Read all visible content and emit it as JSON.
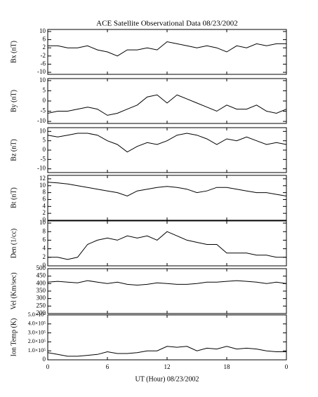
{
  "title": "ACE Satellite Observational Data   08/23/2002",
  "x_label": "UT (Hour)   08/23/2002",
  "x": [
    0,
    1,
    2,
    3,
    4,
    5,
    6,
    7,
    8,
    9,
    10,
    11,
    12,
    13,
    14,
    15,
    16,
    17,
    18,
    19,
    20,
    21,
    22,
    23,
    24
  ],
  "xlim": [
    0,
    24
  ],
  "xticks": [
    0,
    6,
    12,
    18,
    {
      "value": 24,
      "label": "0"
    }
  ],
  "chart_data": [
    {
      "type": "line",
      "y_label": "Bx (nT)",
      "color": "#000000",
      "values": [
        3,
        3,
        2,
        2,
        3,
        1,
        0,
        -2,
        1,
        1,
        2,
        1,
        5,
        4,
        3,
        2,
        3,
        2,
        0,
        3,
        2,
        4,
        3,
        4,
        4
      ],
      "ylim": [
        -11,
        11
      ],
      "yticks": [
        10,
        6,
        2,
        -2,
        -6,
        -10
      ]
    },
    {
      "type": "line",
      "y_label": "By (nT)",
      "color": "#000000",
      "values": [
        -6,
        -5,
        -5,
        -4,
        -3,
        -4,
        -7,
        -6,
        -4,
        -2,
        2,
        3,
        -1,
        3,
        1,
        -1,
        -3,
        -5,
        -2,
        -4,
        -4,
        -2,
        -5,
        -6,
        -4
      ],
      "ylim": [
        -11,
        11
      ],
      "yticks": [
        10,
        5,
        0,
        -5,
        -10
      ]
    },
    {
      "type": "line",
      "y_label": "Bz (nT)",
      "color": "#000000",
      "values": [
        8,
        7,
        8,
        9,
        9,
        8,
        5,
        3,
        -1,
        2,
        4,
        3,
        5,
        8,
        9,
        8,
        6,
        3,
        6,
        5,
        7,
        5,
        3,
        4,
        3
      ],
      "ylim": [
        -12,
        12
      ],
      "yticks": [
        10,
        5,
        0,
        -5,
        -10
      ]
    },
    {
      "type": "line",
      "y_label": "Bt (nT)",
      "color": "#000000",
      "values": [
        11,
        10.8,
        10.5,
        10,
        9.5,
        9,
        8.5,
        8,
        7,
        8.5,
        9,
        9.5,
        9.8,
        9.5,
        9,
        8,
        8.5,
        9.5,
        9.5,
        9,
        8.5,
        8,
        8,
        7.5,
        7
      ],
      "ylim": [
        0,
        13
      ],
      "yticks": [
        12,
        10,
        8,
        6,
        4,
        2,
        0
      ]
    },
    {
      "type": "line",
      "y_label": "Den (1/cc)",
      "color": "#000000",
      "values": [
        2,
        2,
        1.5,
        2,
        5,
        6,
        6.5,
        6,
        7,
        6.5,
        7,
        6,
        8,
        7,
        6,
        5.5,
        5,
        5,
        3,
        3,
        3,
        2.5,
        2.5,
        2,
        2
      ],
      "ylim": [
        0,
        10.5
      ],
      "yticks": [
        10,
        8,
        6,
        4,
        2,
        0
      ]
    },
    {
      "type": "line",
      "y_label": "Vel (Km/sec)",
      "color": "#000000",
      "values": [
        410,
        415,
        410,
        405,
        420,
        410,
        400,
        410,
        395,
        390,
        395,
        405,
        400,
        395,
        395,
        400,
        410,
        410,
        415,
        420,
        415,
        410,
        400,
        410,
        400
      ],
      "ylim": [
        200,
        500
      ],
      "yticks": [
        500,
        450,
        400,
        350,
        300,
        250,
        200
      ]
    },
    {
      "type": "line",
      "y_label": "Ion Temp (K)",
      "color": "#000000",
      "values": [
        80000,
        60000,
        40000,
        40000,
        50000,
        60000,
        90000,
        70000,
        70000,
        80000,
        100000,
        100000,
        150000,
        140000,
        150000,
        100000,
        130000,
        120000,
        150000,
        120000,
        130000,
        120000,
        100000,
        90000,
        90000
      ],
      "ylim": [
        0,
        500000
      ],
      "yticks": [
        {
          "value": 500000,
          "label": "5.0×10⁵"
        },
        {
          "value": 400000,
          "label": "4.0×10⁵"
        },
        {
          "value": 300000,
          "label": "3.0×10⁵"
        },
        {
          "value": 200000,
          "label": "2.0×10⁵"
        },
        {
          "value": 100000,
          "label": "1.0×10⁵"
        },
        0
      ]
    }
  ]
}
